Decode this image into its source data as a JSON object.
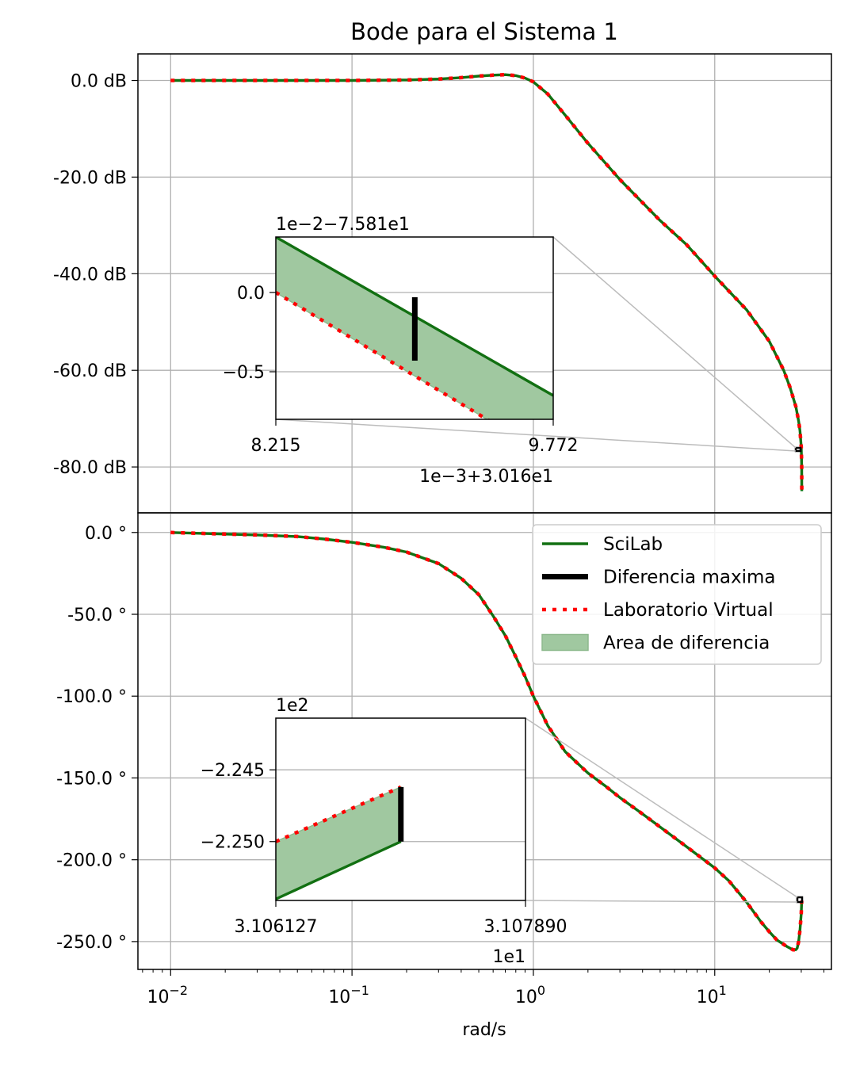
{
  "figure": {
    "title": "Bode para el Sistema 1",
    "xlabel": "rad/s"
  },
  "x_ticks": [
    {
      "value": 0.01,
      "base": "10",
      "exp": "−2"
    },
    {
      "value": 0.1,
      "base": "10",
      "exp": "−1"
    },
    {
      "value": 1,
      "base": "10",
      "exp": "0"
    },
    {
      "value": 10,
      "base": "10",
      "exp": "1"
    }
  ],
  "legend": [
    {
      "label": "SciLab",
      "kind": "solid"
    },
    {
      "label": "Diferencia maxima",
      "kind": "thick"
    },
    {
      "label": "Laboratorio Virtual",
      "kind": "dotted"
    },
    {
      "label": "Area de diferencia",
      "kind": "patch"
    }
  ],
  "colors": {
    "scilab": "#127012",
    "virtual": "#ff0000",
    "area": "#a0c8a0",
    "diff": "#000000",
    "grid": "#b0b0b0"
  },
  "chart_data": [
    {
      "type": "line",
      "name": "magnitude",
      "x_scale": "log",
      "xlim": [
        0.0066,
        44
      ],
      "ylim": [
        -89.5,
        5.5
      ],
      "grid": true,
      "y_ticks": [
        {
          "value": 0,
          "label": "0.0 dB"
        },
        {
          "value": -20,
          "label": "-20.0 dB"
        },
        {
          "value": -40,
          "label": "-40.0 dB"
        },
        {
          "value": -60,
          "label": "-60.0 dB"
        },
        {
          "value": -80,
          "label": "-80.0 dB"
        }
      ],
      "series": [
        {
          "name": "SciLab",
          "x": [
            0.01,
            0.02,
            0.05,
            0.1,
            0.2,
            0.3,
            0.4,
            0.5,
            0.6,
            0.7,
            0.8,
            0.9,
            1,
            1.2,
            1.5,
            2,
            3,
            5,
            7,
            10,
            15,
            20,
            24,
            26,
            28,
            29,
            29.5,
            30,
            30.16,
            30.2
          ],
          "y": [
            0,
            0,
            0,
            0,
            0.1,
            0.3,
            0.6,
            0.9,
            1.1,
            1.2,
            1.0,
            0.5,
            -0.3,
            -2.8,
            -7.2,
            -13,
            -20.5,
            -29,
            -34,
            -40.5,
            -47.5,
            -54,
            -60,
            -63.5,
            -67.5,
            -70.5,
            -72.5,
            -75.8,
            -80,
            -85
          ]
        },
        {
          "name": "Laboratorio Virtual",
          "x": [
            0.01,
            0.02,
            0.05,
            0.1,
            0.2,
            0.3,
            0.4,
            0.5,
            0.6,
            0.7,
            0.8,
            0.9,
            1,
            1.2,
            1.5,
            2,
            3,
            5,
            7,
            10,
            15,
            20,
            24,
            26,
            28,
            29,
            29.5,
            30,
            30.16,
            30.2
          ],
          "y": [
            0,
            0,
            0,
            0,
            0.1,
            0.3,
            0.6,
            0.9,
            1.1,
            1.2,
            1.0,
            0.5,
            -0.3,
            -2.8,
            -7.2,
            -13,
            -20.5,
            -29,
            -34,
            -40.5,
            -47.5,
            -54,
            -60,
            -63.5,
            -67.5,
            -70.5,
            -72.5,
            -75.8,
            -80,
            -85
          ]
        }
      ],
      "inset": {
        "x_ticks": [
          "8.215",
          "9.772"
        ],
        "y_ticks": [
          {
            "value": 0,
            "label": "0.0"
          },
          {
            "value": -0.5,
            "label": "−0.5"
          }
        ],
        "y_offset": "1e−2−7.581e1",
        "x_offset": "1e−3+3.016e1",
        "xlim": [
          8.215,
          9.772
        ],
        "ylim": [
          -0.8,
          0.35
        ],
        "scilab": [
          [
            8.215,
            0.35
          ],
          [
            9.772,
            -0.65
          ]
        ],
        "virtual": [
          [
            8.215,
            0
          ],
          [
            9.4,
            -0.8
          ]
        ],
        "diff_x": 8.995,
        "diff_y": [
          -0.43,
          -0.03
        ]
      }
    },
    {
      "type": "line",
      "name": "phase",
      "x_scale": "log",
      "xlim": [
        0.0066,
        44
      ],
      "ylim": [
        -267,
        12
      ],
      "grid": true,
      "y_ticks": [
        {
          "value": 0,
          "label": "0.0 °"
        },
        {
          "value": -50,
          "label": "-50.0 °"
        },
        {
          "value": -100,
          "label": "-100.0 °"
        },
        {
          "value": -150,
          "label": "-150.0 °"
        },
        {
          "value": -200,
          "label": "-200.0 °"
        },
        {
          "value": -250,
          "label": "-250.0 °"
        }
      ],
      "series": [
        {
          "name": "SciLab",
          "x": [
            0.01,
            0.02,
            0.03,
            0.05,
            0.07,
            0.1,
            0.15,
            0.2,
            0.3,
            0.4,
            0.5,
            0.6,
            0.7,
            0.8,
            0.9,
            1,
            1.2,
            1.5,
            2,
            2.5,
            3,
            4,
            5,
            7,
            10,
            12,
            15,
            18,
            20,
            22,
            25,
            27,
            28,
            28.5,
            29,
            29.5,
            30,
            30.16
          ],
          "y": [
            0,
            -1,
            -1.5,
            -2.5,
            -4,
            -6,
            -9,
            -12,
            -19,
            -28,
            -38,
            -51,
            -63,
            -76,
            -88,
            -100,
            -118,
            -134,
            -147,
            -155,
            -162,
            -172,
            -180,
            -192,
            -205,
            -213,
            -226,
            -238,
            -244,
            -249,
            -253,
            -255,
            -255,
            -254,
            -250,
            -243,
            -233,
            -225
          ]
        },
        {
          "name": "Laboratorio Virtual",
          "x": [
            0.01,
            0.02,
            0.03,
            0.05,
            0.07,
            0.1,
            0.15,
            0.2,
            0.3,
            0.4,
            0.5,
            0.6,
            0.7,
            0.8,
            0.9,
            1,
            1.2,
            1.5,
            2,
            2.5,
            3,
            4,
            5,
            7,
            10,
            12,
            15,
            18,
            20,
            22,
            25,
            27,
            28,
            28.5,
            29,
            29.5,
            30,
            30.16
          ],
          "y": [
            0,
            -1,
            -1.5,
            -2.5,
            -4,
            -6,
            -9,
            -12,
            -19,
            -28,
            -38,
            -51,
            -63,
            -76,
            -88,
            -100,
            -118,
            -134,
            -147,
            -155,
            -162,
            -172,
            -180,
            -192,
            -205,
            -213,
            -226,
            -238,
            -244,
            -249,
            -253,
            -255,
            -255,
            -254,
            -250,
            -243,
            -233,
            -225
          ]
        }
      ],
      "inset": {
        "x_ticks": [
          "3.106127",
          "3.107890"
        ],
        "y_ticks": [
          {
            "value": -2.245,
            "label": "−2.245"
          },
          {
            "value": -2.25,
            "label": "−2.250"
          }
        ],
        "y_offset": "1e2",
        "x_offset": "1e1",
        "xlim": [
          3.106127,
          3.10789
        ],
        "ylim": [
          -2.2541,
          -2.2414
        ],
        "scilab": [
          [
            3.106127,
            -2.254
          ],
          [
            3.10701,
            -2.25
          ]
        ],
        "virtual": [
          [
            3.106127,
            -2.25
          ],
          [
            3.10701,
            -2.2462
          ]
        ],
        "diff_x": 3.10701,
        "diff_y": [
          -2.25,
          -2.2462
        ]
      }
    }
  ]
}
